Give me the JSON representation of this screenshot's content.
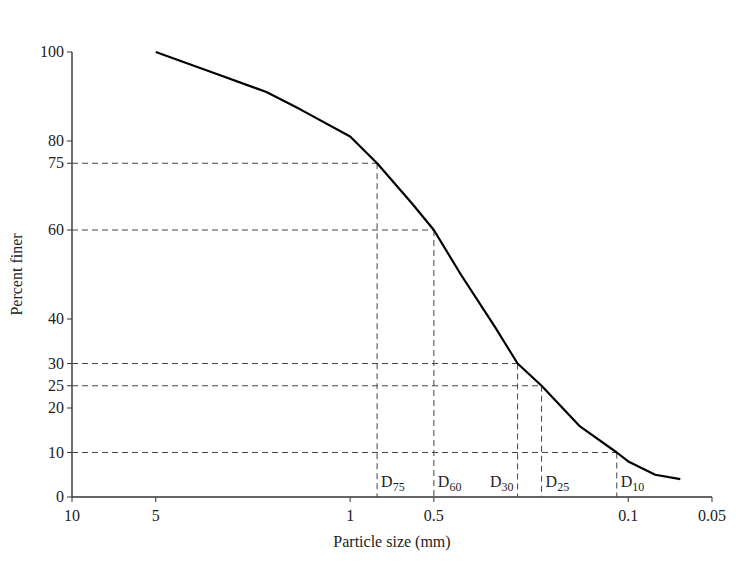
{
  "chart_data": {
    "type": "line",
    "x": [
      5,
      3,
      2,
      1.5,
      1,
      0.8,
      0.6,
      0.5,
      0.4,
      0.3,
      0.25,
      0.205,
      0.15,
      0.11,
      0.1,
      0.08,
      0.065
    ],
    "values": [
      100,
      95,
      91,
      87,
      81,
      75,
      66,
      60,
      50,
      38,
      30,
      25,
      16,
      10,
      8,
      5,
      4
    ],
    "color": "#000000",
    "xlabel": "Particle size (mm)",
    "ylabel": "Percent finer",
    "xlim": [
      10,
      0.05
    ],
    "ylim": [
      0,
      100
    ],
    "xticks": [
      10,
      5,
      1,
      0.5,
      0.1,
      0.05
    ],
    "yticks": [
      0,
      10,
      20,
      25,
      30,
      40,
      60,
      75,
      80,
      100
    ],
    "log": "x",
    "grid": false,
    "annotations": [
      {
        "label": "D75",
        "x": 0.8,
        "y": 75
      },
      {
        "label": "D60",
        "x": 0.5,
        "y": 60
      },
      {
        "label": "D30",
        "x": 0.25,
        "y": 30
      },
      {
        "label": "D25",
        "x": 0.205,
        "y": 25
      },
      {
        "label": "D10",
        "x": 0.11,
        "y": 10
      }
    ]
  }
}
